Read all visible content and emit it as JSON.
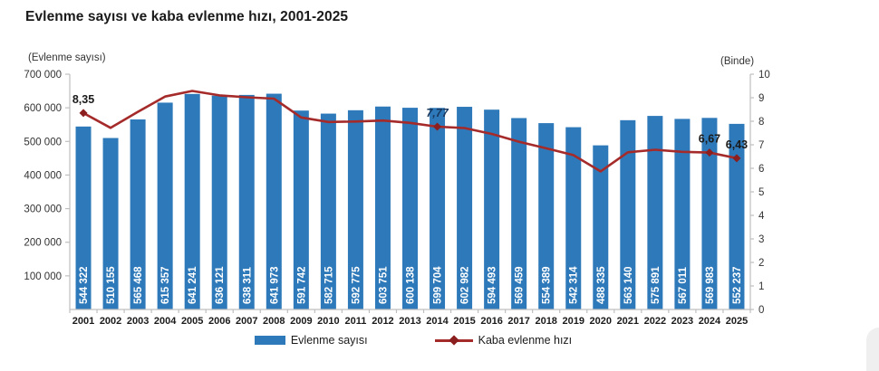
{
  "title": "Evlenme sayısı ve kaba evlenme hızı, 2001-2025",
  "legend": {
    "bar_label": "Evlenme sayısı",
    "line_label": "Kaba evlenme hızı"
  },
  "colors": {
    "bar": "#2E79B9",
    "line": "#A52A2A",
    "marker": "#8B1E1E",
    "bar_value_text": "#FFFFFF",
    "axis": "#BFBFBF",
    "tick_text": "#333333",
    "year_text": "#1a1a1a",
    "point_label_text": "#1a1a1a",
    "point_label_emphasis_text": "#17375E"
  },
  "chart_data": {
    "type": "bar+line combo",
    "title": "Evlenme sayısı ve kaba evlenme hızı, 2001-2025",
    "categories": [
      "2001",
      "2002",
      "2003",
      "2004",
      "2005",
      "2006",
      "2007",
      "2008",
      "2009",
      "2010",
      "2011",
      "2012",
      "2013",
      "2014",
      "2015",
      "2016",
      "2017",
      "2018",
      "2019",
      "2020",
      "2021",
      "2022",
      "2023",
      "2024",
      "2025"
    ],
    "series": [
      {
        "name": "Evlenme sayısı",
        "type": "bar",
        "axis": "left",
        "values": [
          544322,
          510155,
          565468,
          615357,
          641241,
          636121,
          638311,
          641973,
          591742,
          582715,
          592775,
          603751,
          600138,
          599704,
          602982,
          594493,
          569459,
          554389,
          542314,
          488335,
          563140,
          575891,
          567011,
          569983,
          552237
        ],
        "value_labels": [
          "544 322",
          "510 155",
          "565 468",
          "615 357",
          "641 241",
          "636 121",
          "638 311",
          "641 973",
          "591 742",
          "582 715",
          "592 775",
          "603 751",
          "600 138",
          "599 704",
          "602 982",
          "594 493",
          "569 459",
          "554 389",
          "542 314",
          "488 335",
          "563 140",
          "575 891",
          "567 011",
          "569 983",
          "552 237"
        ]
      },
      {
        "name": "Kaba evlenme hızı",
        "type": "line",
        "axis": "right",
        "values": [
          8.35,
          7.72,
          8.4,
          9.05,
          9.29,
          9.1,
          9.02,
          8.96,
          8.16,
          7.97,
          7.99,
          8.03,
          7.93,
          7.77,
          7.71,
          7.46,
          7.13,
          6.85,
          6.56,
          5.87,
          6.68,
          6.79,
          6.7,
          6.67,
          6.43
        ],
        "point_labels": [
          {
            "index": 0,
            "text": "8,35",
            "emphasis": false
          },
          {
            "index": 13,
            "text": "7,77",
            "emphasis": true
          },
          {
            "index": 23,
            "text": "6,67",
            "emphasis": false
          },
          {
            "index": 24,
            "text": "6,43",
            "emphasis": false
          }
        ]
      }
    ],
    "left_axis": {
      "title": "(Evlenme sayısı)",
      "min": 0,
      "max": 700000,
      "tick_values": [
        100000,
        200000,
        300000,
        400000,
        500000,
        600000,
        700000
      ],
      "tick_labels": [
        "100 000",
        "200 000",
        "300 000",
        "400 000",
        "500 000",
        "600 000",
        "700 000"
      ]
    },
    "right_axis": {
      "title": "(Binde)",
      "min": 0,
      "max": 10,
      "tick_values": [
        0,
        1,
        2,
        3,
        4,
        5,
        6,
        7,
        8,
        9,
        10
      ]
    },
    "grid": false,
    "legend_position": "bottom-center"
  }
}
